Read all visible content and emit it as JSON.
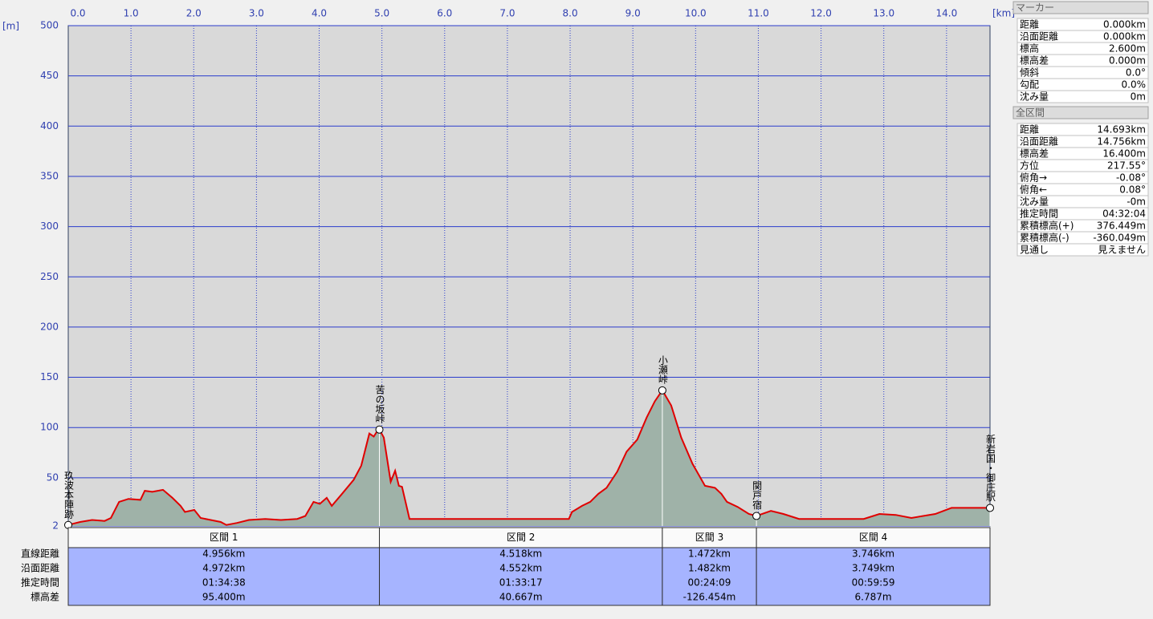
{
  "chart_data": {
    "type": "area",
    "xlabel": "[km]",
    "ylabel": "[m]",
    "x": [
      0,
      0.19,
      0.38,
      0.58,
      0.68,
      0.81,
      0.96,
      1.15,
      1.22,
      1.34,
      1.51,
      1.66,
      1.79,
      1.86,
      2.01,
      2.11,
      2.27,
      2.43,
      2.52,
      2.69,
      2.88,
      3.14,
      3.39,
      3.65,
      3.78,
      3.91,
      4.01,
      4.12,
      4.2,
      4.35,
      4.55,
      4.67,
      4.8,
      4.87,
      4.93,
      4.96,
      5.03,
      5.14,
      5.21,
      5.27,
      5.32,
      5.44,
      6.59,
      7.98,
      8.03,
      8.19,
      8.32,
      8.45,
      8.58,
      8.75,
      8.9,
      9.07,
      9.22,
      9.35,
      9.47,
      9.61,
      9.77,
      9.95,
      10.15,
      10.31,
      10.41,
      10.5,
      10.67,
      10.85,
      10.97,
      11.2,
      11.4,
      11.65,
      12.68,
      12.93,
      13.19,
      13.44,
      13.82,
      14.08,
      14.693
    ],
    "values": [
      3,
      6,
      8,
      7,
      10,
      26,
      29,
      28,
      37,
      36,
      38,
      30,
      22,
      16,
      18,
      10,
      8,
      6,
      3,
      5,
      8,
      9,
      8,
      9,
      12,
      26,
      24,
      30,
      22,
      33,
      48,
      62,
      94,
      91,
      97,
      98,
      90,
      46,
      57,
      42,
      41,
      9,
      9,
      9,
      16,
      22,
      26,
      34,
      40,
      56,
      76,
      88,
      110,
      126,
      137,
      122,
      90,
      64,
      42,
      40,
      34,
      26,
      21,
      14,
      12,
      17,
      14,
      9,
      9,
      14,
      13,
      10,
      14,
      20,
      20
    ],
    "color": "#e00000",
    "fill_color": "#9fb2a8",
    "xlim": [
      0,
      14.693
    ],
    "ylim": [
      2,
      500
    ],
    "xticks": [
      {
        "value": 0,
        "label": "0.0"
      },
      {
        "value": 1,
        "label": "1.0"
      },
      {
        "value": 2,
        "label": "2.0"
      },
      {
        "value": 3,
        "label": "3.0"
      },
      {
        "value": 4,
        "label": "4.0"
      },
      {
        "value": 5,
        "label": "5.0"
      },
      {
        "value": 6,
        "label": "6.0"
      },
      {
        "value": 7,
        "label": "7.0"
      },
      {
        "value": 8,
        "label": "8.0"
      },
      {
        "value": 9,
        "label": "9.0"
      },
      {
        "value": 10,
        "label": "10.0"
      },
      {
        "value": 11,
        "label": "11.0"
      },
      {
        "value": 12,
        "label": "12.0"
      },
      {
        "value": 13,
        "label": "13.0"
      },
      {
        "value": 14,
        "label": "14.0"
      }
    ],
    "yticks": [
      2,
      50,
      100,
      150,
      200,
      250,
      300,
      350,
      400,
      450,
      500
    ],
    "grid": true,
    "annotations": [
      {
        "text": "玖波本陣跡",
        "x": 0,
        "y": 3
      },
      {
        "text": "苦の坂峠",
        "x": 4.96,
        "y": 98
      },
      {
        "text": "小瀬峠",
        "x": 9.47,
        "y": 137
      },
      {
        "text": "関戸宿",
        "x": 10.97,
        "y": 12
      },
      {
        "text": "新岩国・御庄駅",
        "x": 14.693,
        "y": 20
      }
    ]
  },
  "sections": {
    "header": [
      "区間 1",
      "区間 2",
      "区間 3",
      "区間 4"
    ],
    "row_labels": [
      "直線距離",
      "沿面距離",
      "推定時間",
      "標高差"
    ],
    "rows": [
      [
        "4.956km",
        "4.518km",
        "1.472km",
        "3.746km"
      ],
      [
        "4.972km",
        "4.552km",
        "1.482km",
        "3.749km"
      ],
      [
        "01:34:38",
        "01:33:17",
        "00:24:09",
        "00:59:59"
      ],
      [
        "95.400m",
        "40.667m",
        "-126.454m",
        "6.787m"
      ]
    ]
  },
  "marker_panel": {
    "title": "マーカー",
    "rows": [
      [
        "距離",
        "0.000km"
      ],
      [
        "沿面距離",
        "0.000km"
      ],
      [
        "標高",
        "2.600m"
      ],
      [
        "標高差",
        "0.000m"
      ],
      [
        "傾斜",
        "0.0°"
      ],
      [
        "勾配",
        "0.0%"
      ],
      [
        "沈み量",
        "0m"
      ]
    ]
  },
  "total_panel": {
    "title": "全区間",
    "rows": [
      [
        "距離",
        "14.693km"
      ],
      [
        "沿面距離",
        "14.756km"
      ],
      [
        "標高差",
        "16.400m"
      ],
      [
        "方位",
        "217.55°"
      ],
      [
        "俯角→",
        "-0.08°"
      ],
      [
        "俯角←",
        "0.08°"
      ],
      [
        "沈み量",
        "-0m"
      ],
      [
        "推定時間",
        "04:32:04"
      ],
      [
        "累積標高(+)",
        "376.449m"
      ],
      [
        "累積標高(-)",
        "-360.049m"
      ],
      [
        "見通し",
        "見えません"
      ]
    ]
  }
}
